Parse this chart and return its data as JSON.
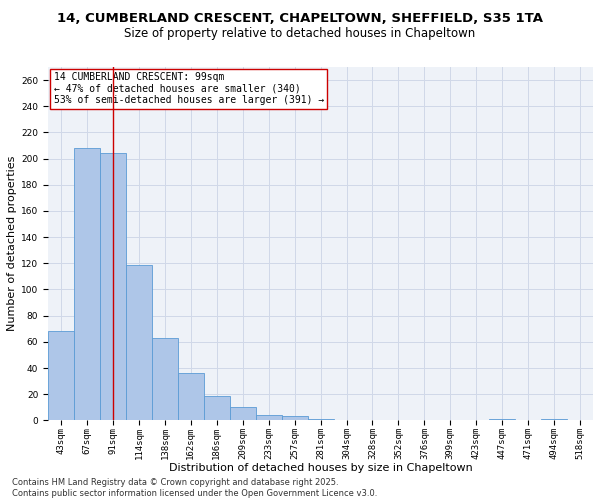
{
  "title_line1": "14, CUMBERLAND CRESCENT, CHAPELTOWN, SHEFFIELD, S35 1TA",
  "title_line2": "Size of property relative to detached houses in Chapeltown",
  "xlabel": "Distribution of detached houses by size in Chapeltown",
  "ylabel": "Number of detached properties",
  "categories": [
    "43sqm",
    "67sqm",
    "91sqm",
    "114sqm",
    "138sqm",
    "162sqm",
    "186sqm",
    "209sqm",
    "233sqm",
    "257sqm",
    "281sqm",
    "304sqm",
    "328sqm",
    "352sqm",
    "376sqm",
    "399sqm",
    "423sqm",
    "447sqm",
    "471sqm",
    "494sqm",
    "518sqm"
  ],
  "values": [
    68,
    208,
    204,
    119,
    63,
    36,
    19,
    10,
    4,
    3,
    1,
    0,
    0,
    0,
    0,
    0,
    0,
    1,
    0,
    1,
    0
  ],
  "bar_color": "#aec6e8",
  "bar_edge_color": "#5b9bd5",
  "grid_color": "#d0d8e8",
  "background_color": "#eef2f8",
  "property_bar_index": 2,
  "vline_color": "#cc0000",
  "annotation_text": "14 CUMBERLAND CRESCENT: 99sqm\n← 47% of detached houses are smaller (340)\n53% of semi-detached houses are larger (391) →",
  "annotation_box_color": "#ffffff",
  "annotation_box_edge": "#cc0000",
  "ylim": [
    0,
    270
  ],
  "yticks": [
    0,
    20,
    40,
    60,
    80,
    100,
    120,
    140,
    160,
    180,
    200,
    220,
    240,
    260
  ],
  "footer_line1": "Contains HM Land Registry data © Crown copyright and database right 2025.",
  "footer_line2": "Contains public sector information licensed under the Open Government Licence v3.0.",
  "title_fontsize": 9.5,
  "subtitle_fontsize": 8.5,
  "axis_label_fontsize": 8,
  "tick_fontsize": 6.5,
  "annotation_fontsize": 7,
  "footer_fontsize": 6
}
